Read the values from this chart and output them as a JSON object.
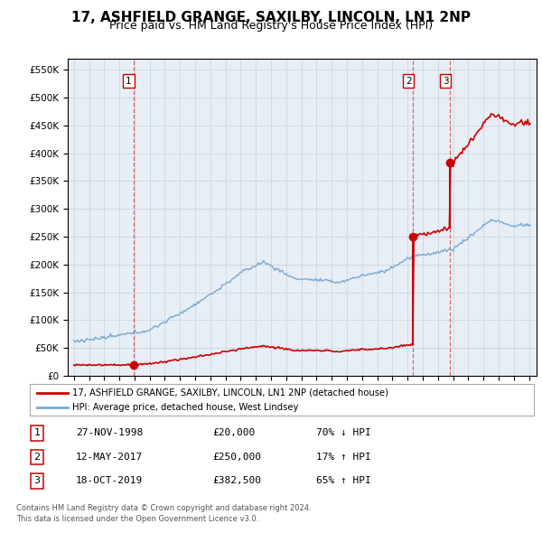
{
  "title": "17, ASHFIELD GRANGE, SAXILBY, LINCOLN, LN1 2NP",
  "subtitle": "Price paid vs. HM Land Registry's House Price Index (HPI)",
  "title_fontsize": 11,
  "subtitle_fontsize": 9,
  "transactions": [
    {
      "num": 1,
      "date": "27-NOV-1998",
      "year": 1998.92,
      "price": 20000,
      "pct": "70%",
      "dir": "↓"
    },
    {
      "num": 2,
      "date": "12-MAY-2017",
      "year": 2017.36,
      "price": 250000,
      "pct": "17%",
      "dir": "↑"
    },
    {
      "num": 3,
      "date": "18-OCT-2019",
      "year": 2019.79,
      "price": 382500,
      "pct": "65%",
      "dir": "↑"
    }
  ],
  "red_line_color": "#cc0000",
  "blue_line_color": "#7aa8d0",
  "dashed_line_color": "#dd6666",
  "background_color": "#ffffff",
  "chart_bg_color": "#e8eef5",
  "grid_color": "#c8d0da",
  "ylim": [
    0,
    570000
  ],
  "yticks": [
    0,
    50000,
    100000,
    150000,
    200000,
    250000,
    300000,
    350000,
    400000,
    450000,
    500000,
    550000
  ],
  "xlim_start": 1994.6,
  "xlim_end": 2025.5,
  "legend_line1": "17, ASHFIELD GRANGE, SAXILBY, LINCOLN, LN1 2NP (detached house)",
  "legend_line2": "HPI: Average price, detached house, West Lindsey",
  "footer1": "Contains HM Land Registry data © Crown copyright and database right 2024.",
  "footer2": "This data is licensed under the Open Government Licence v3.0.",
  "table_rows": [
    [
      "1",
      "27-NOV-1998",
      "£20,000",
      "70% ↓ HPI"
    ],
    [
      "2",
      "12-MAY-2017",
      "£250,000",
      "17% ↑ HPI"
    ],
    [
      "3",
      "18-OCT-2019",
      "£382,500",
      "65% ↑ HPI"
    ]
  ]
}
